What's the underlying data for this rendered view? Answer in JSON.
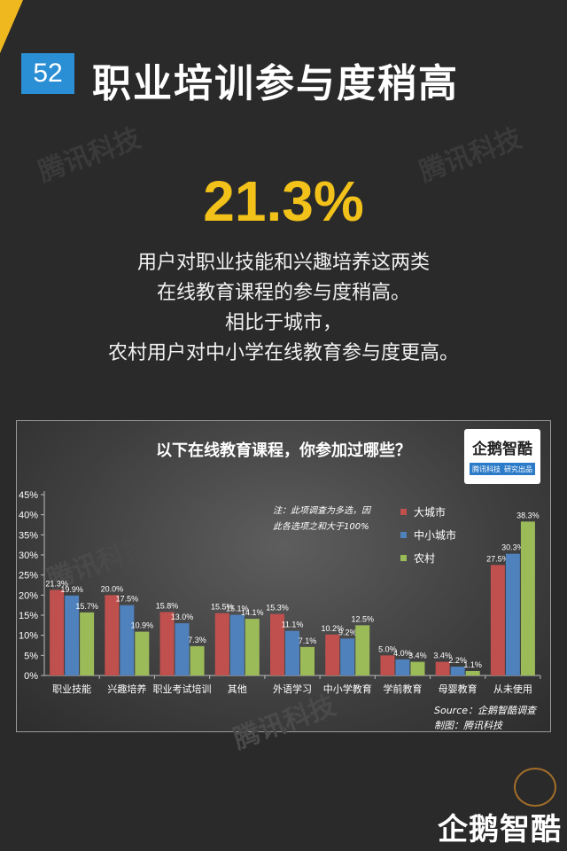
{
  "header": {
    "number": "52",
    "title": "职业培训参与度稍高"
  },
  "watermark": {
    "text": "腾讯科技"
  },
  "highlight": {
    "stat": "21.3%",
    "lines": [
      "用户对职业技能和兴趣培养这两类",
      "在线教育课程的参与度稍高。",
      "相比于城市，",
      "农村用户对中小学在线教育参与度更高。"
    ]
  },
  "chart_logo": {
    "name": "企鹅智酷",
    "tag1": "腾讯科技",
    "tag2": "研究出品"
  },
  "chart_note": [
    "注：此项调查为多选，因",
    "此各选项之和大于100%"
  ],
  "source": {
    "line1": "Source：企鹅智酷调查",
    "line2": "制图：腾讯科技"
  },
  "footer": {
    "logo_text": "企鹅智酷"
  },
  "colors": {
    "big_city": "#c0504d",
    "small_city": "#4f81bd",
    "rural": "#9bbb59",
    "accent": "#f2c21a",
    "badge": "#2b8fd6"
  },
  "chart_data": {
    "type": "bar",
    "title": "以下在线教育课程，你参加过哪些？",
    "categories": [
      "职业技能",
      "兴趣培养",
      "职业考试培训",
      "其他",
      "外语学习",
      "中小学教育",
      "学前教育",
      "母婴教育",
      "从未使用"
    ],
    "series": [
      {
        "name": "大城市",
        "values": [
          21.3,
          20.0,
          15.8,
          15.5,
          15.3,
          10.2,
          5.0,
          3.4,
          27.5
        ]
      },
      {
        "name": "中小城市",
        "values": [
          19.9,
          17.5,
          13.0,
          15.1,
          11.1,
          9.2,
          4.0,
          2.2,
          30.3
        ]
      },
      {
        "name": "农村",
        "values": [
          15.7,
          10.9,
          7.3,
          14.1,
          7.1,
          12.5,
          3.4,
          1.1,
          38.3
        ]
      }
    ],
    "yticks": [
      "0%",
      "5%",
      "10%",
      "15%",
      "20%",
      "25%",
      "30%",
      "35%",
      "40%",
      "45%"
    ],
    "ylim": [
      0,
      45
    ],
    "xlabel": "",
    "ylabel": "",
    "legend": "top-right",
    "grid": false
  }
}
